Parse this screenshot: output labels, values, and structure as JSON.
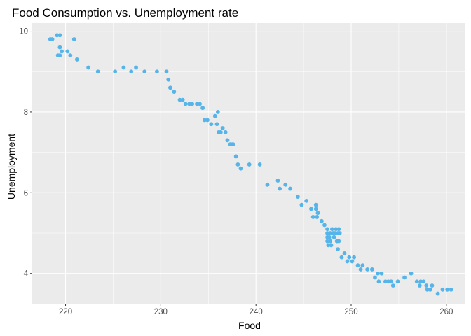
{
  "chart_data": {
    "type": "scatter",
    "title": "Food Consumption vs. Unemployment rate",
    "xlabel": "Food",
    "ylabel": "Unemployment",
    "xlim": [
      216.5,
      262.0
    ],
    "ylim": [
      3.25,
      10.2
    ],
    "x_ticks": [
      220,
      230,
      240,
      250,
      260
    ],
    "y_ticks": [
      4,
      6,
      8,
      10
    ],
    "x_tick_labels": [
      "220",
      "230",
      "240",
      "250",
      "260"
    ],
    "y_tick_labels": [
      "4",
      "6",
      "8",
      "10"
    ],
    "grid": true,
    "legend": "none",
    "panel_color": "#ebebeb",
    "grid_color": "#ffffff",
    "point_color": "#56b4e9",
    "points": [
      {
        "x": 218.4,
        "y": 9.8
      },
      {
        "x": 218.6,
        "y": 9.8
      },
      {
        "x": 219.1,
        "y": 9.9
      },
      {
        "x": 219.4,
        "y": 9.9
      },
      {
        "x": 219.2,
        "y": 9.4
      },
      {
        "x": 219.4,
        "y": 9.4
      },
      {
        "x": 219.4,
        "y": 9.6
      },
      {
        "x": 219.6,
        "y": 9.5
      },
      {
        "x": 220.2,
        "y": 9.5
      },
      {
        "x": 220.5,
        "y": 9.4
      },
      {
        "x": 220.9,
        "y": 9.8
      },
      {
        "x": 221.2,
        "y": 9.3
      },
      {
        "x": 222.4,
        "y": 9.1
      },
      {
        "x": 223.4,
        "y": 9.0
      },
      {
        "x": 225.2,
        "y": 9.0
      },
      {
        "x": 226.1,
        "y": 9.1
      },
      {
        "x": 226.9,
        "y": 9.0
      },
      {
        "x": 227.4,
        "y": 9.1
      },
      {
        "x": 228.3,
        "y": 9.0
      },
      {
        "x": 229.6,
        "y": 9.0
      },
      {
        "x": 230.6,
        "y": 9.0
      },
      {
        "x": 230.8,
        "y": 8.8
      },
      {
        "x": 231.0,
        "y": 8.6
      },
      {
        "x": 231.4,
        "y": 8.5
      },
      {
        "x": 232.0,
        "y": 8.3
      },
      {
        "x": 232.3,
        "y": 8.3
      },
      {
        "x": 232.6,
        "y": 8.2
      },
      {
        "x": 233.0,
        "y": 8.2
      },
      {
        "x": 233.3,
        "y": 8.2
      },
      {
        "x": 233.8,
        "y": 8.2
      },
      {
        "x": 234.1,
        "y": 8.2
      },
      {
        "x": 234.4,
        "y": 8.1
      },
      {
        "x": 234.6,
        "y": 7.8
      },
      {
        "x": 234.9,
        "y": 7.8
      },
      {
        "x": 235.3,
        "y": 7.7
      },
      {
        "x": 235.7,
        "y": 7.9
      },
      {
        "x": 236.0,
        "y": 8.0
      },
      {
        "x": 235.9,
        "y": 7.7
      },
      {
        "x": 236.1,
        "y": 7.5
      },
      {
        "x": 236.3,
        "y": 7.5
      },
      {
        "x": 236.5,
        "y": 7.6
      },
      {
        "x": 236.8,
        "y": 7.5
      },
      {
        "x": 237.0,
        "y": 7.3
      },
      {
        "x": 237.3,
        "y": 7.2
      },
      {
        "x": 237.5,
        "y": 7.2
      },
      {
        "x": 237.6,
        "y": 7.2
      },
      {
        "x": 237.9,
        "y": 6.9
      },
      {
        "x": 238.1,
        "y": 6.7
      },
      {
        "x": 238.4,
        "y": 6.6
      },
      {
        "x": 239.3,
        "y": 6.7
      },
      {
        "x": 240.4,
        "y": 6.7
      },
      {
        "x": 241.2,
        "y": 6.2
      },
      {
        "x": 242.3,
        "y": 6.3
      },
      {
        "x": 242.5,
        "y": 6.1
      },
      {
        "x": 243.1,
        "y": 6.2
      },
      {
        "x": 243.6,
        "y": 6.1
      },
      {
        "x": 244.4,
        "y": 5.9
      },
      {
        "x": 244.8,
        "y": 5.7
      },
      {
        "x": 245.3,
        "y": 5.8
      },
      {
        "x": 245.8,
        "y": 5.6
      },
      {
        "x": 246.0,
        "y": 5.4
      },
      {
        "x": 246.3,
        "y": 5.7
      },
      {
        "x": 246.3,
        "y": 5.6
      },
      {
        "x": 246.4,
        "y": 5.4
      },
      {
        "x": 246.5,
        "y": 5.5
      },
      {
        "x": 246.9,
        "y": 5.3
      },
      {
        "x": 247.2,
        "y": 5.2
      },
      {
        "x": 247.5,
        "y": 5.1
      },
      {
        "x": 247.5,
        "y": 5.0
      },
      {
        "x": 247.5,
        "y": 4.9
      },
      {
        "x": 247.5,
        "y": 4.8
      },
      {
        "x": 247.6,
        "y": 4.7
      },
      {
        "x": 247.7,
        "y": 4.9
      },
      {
        "x": 247.8,
        "y": 5.0
      },
      {
        "x": 247.8,
        "y": 4.8
      },
      {
        "x": 247.9,
        "y": 4.7
      },
      {
        "x": 248.0,
        "y": 5.1
      },
      {
        "x": 248.1,
        "y": 5.0
      },
      {
        "x": 248.2,
        "y": 4.9
      },
      {
        "x": 248.3,
        "y": 5.0
      },
      {
        "x": 248.4,
        "y": 5.1
      },
      {
        "x": 248.5,
        "y": 4.8
      },
      {
        "x": 248.6,
        "y": 5.0
      },
      {
        "x": 248.7,
        "y": 5.1
      },
      {
        "x": 248.8,
        "y": 5.0
      },
      {
        "x": 248.7,
        "y": 4.8
      },
      {
        "x": 248.6,
        "y": 4.6
      },
      {
        "x": 249.0,
        "y": 4.4
      },
      {
        "x": 249.3,
        "y": 4.5
      },
      {
        "x": 249.6,
        "y": 4.3
      },
      {
        "x": 249.8,
        "y": 4.4
      },
      {
        "x": 250.1,
        "y": 4.3
      },
      {
        "x": 250.3,
        "y": 4.4
      },
      {
        "x": 250.7,
        "y": 4.2
      },
      {
        "x": 251.0,
        "y": 4.1
      },
      {
        "x": 251.2,
        "y": 4.2
      },
      {
        "x": 251.7,
        "y": 4.1
      },
      {
        "x": 252.2,
        "y": 4.1
      },
      {
        "x": 252.5,
        "y": 3.9
      },
      {
        "x": 252.8,
        "y": 4.0
      },
      {
        "x": 252.9,
        "y": 3.8
      },
      {
        "x": 253.2,
        "y": 4.0
      },
      {
        "x": 253.6,
        "y": 3.8
      },
      {
        "x": 253.9,
        "y": 3.8
      },
      {
        "x": 254.2,
        "y": 3.8
      },
      {
        "x": 254.4,
        "y": 3.7
      },
      {
        "x": 254.9,
        "y": 3.8
      },
      {
        "x": 255.6,
        "y": 3.9
      },
      {
        "x": 256.3,
        "y": 4.0
      },
      {
        "x": 256.9,
        "y": 3.8
      },
      {
        "x": 257.3,
        "y": 3.8
      },
      {
        "x": 257.2,
        "y": 3.7
      },
      {
        "x": 257.6,
        "y": 3.8
      },
      {
        "x": 257.9,
        "y": 3.7
      },
      {
        "x": 258.0,
        "y": 3.6
      },
      {
        "x": 258.3,
        "y": 3.6
      },
      {
        "x": 258.5,
        "y": 3.7
      },
      {
        "x": 259.1,
        "y": 3.5
      },
      {
        "x": 259.6,
        "y": 3.6
      },
      {
        "x": 260.1,
        "y": 3.6
      },
      {
        "x": 260.5,
        "y": 3.6
      }
    ]
  }
}
